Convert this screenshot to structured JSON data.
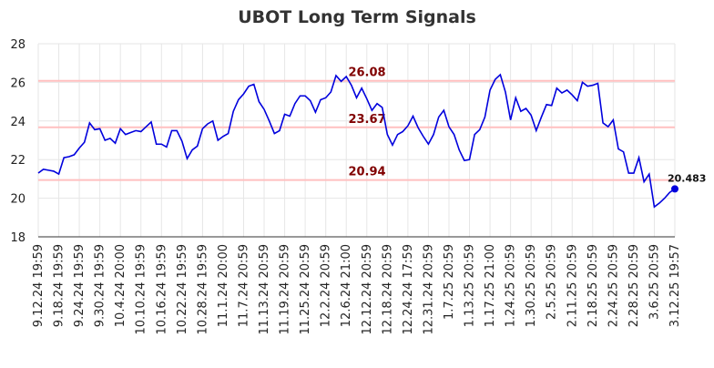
{
  "chart_data": {
    "type": "line",
    "title": "UBOT Long Term Signals",
    "categories": [
      "9.12.24 19:59",
      null,
      null,
      null,
      "9.18.24 19:59",
      null,
      null,
      null,
      "9.24.24 19:59",
      null,
      null,
      null,
      "9.30.24 19:59",
      null,
      null,
      null,
      "10.4.24 20:00",
      null,
      null,
      null,
      "10.10.24 19:59",
      null,
      null,
      null,
      "10.16.24 19:59",
      null,
      null,
      null,
      "10.22.24 19:59",
      null,
      null,
      null,
      "10.28.24 19:59",
      null,
      null,
      null,
      "11.1.24 20:00",
      null,
      null,
      null,
      "11.7.24 20:59",
      null,
      null,
      null,
      "11.13.24 20:59",
      null,
      null,
      null,
      "11.19.24 20:59",
      null,
      null,
      null,
      "11.25.24 20:59",
      null,
      null,
      null,
      "12.2.24 20:59",
      null,
      null,
      null,
      "12.6.24 21:00",
      null,
      null,
      null,
      "12.12.24 20:59",
      null,
      null,
      null,
      "12.18.24 20:59",
      null,
      null,
      null,
      "12.24.24 17:59",
      null,
      null,
      null,
      "12.31.24 20:59",
      null,
      null,
      null,
      "1.7.25 20:59",
      null,
      null,
      null,
      "1.13.25 20:59",
      null,
      null,
      null,
      "1.17.25 21:00",
      null,
      null,
      null,
      "1.24.25 20:59",
      null,
      null,
      null,
      "1.30.25 20:59",
      null,
      null,
      null,
      "2.5.25 20:59",
      null,
      null,
      null,
      "2.11.25 20:59",
      null,
      null,
      null,
      "2.18.25 20:59",
      null,
      null,
      null,
      "2.24.25 20:59",
      null,
      null,
      null,
      "2.28.25 20:59",
      null,
      null,
      null,
      "3.6.25 20:59",
      null,
      null,
      null,
      "3.12.25 19:57"
    ],
    "series": [
      {
        "name": "UBOT",
        "color": "#0000dd",
        "values": [
          21.3,
          21.5,
          21.45,
          21.4,
          21.25,
          22.1,
          22.15,
          22.25,
          22.6,
          22.9,
          23.9,
          23.55,
          23.6,
          23.0,
          23.1,
          22.85,
          23.6,
          23.3,
          23.4,
          23.5,
          23.45,
          23.7,
          23.95,
          22.8,
          22.8,
          22.65,
          23.5,
          23.5,
          22.95,
          22.05,
          22.5,
          22.7,
          23.6,
          23.85,
          24.0,
          23.0,
          23.2,
          23.35,
          24.5,
          25.1,
          25.4,
          25.8,
          25.9,
          25.0,
          24.6,
          24.0,
          23.35,
          23.5,
          24.35,
          24.25,
          24.9,
          25.3,
          25.3,
          25.05,
          24.45,
          25.1,
          25.2,
          25.5,
          26.35,
          26.05,
          26.3,
          25.85,
          25.2,
          25.7,
          25.15,
          24.55,
          24.9,
          24.7,
          23.3,
          22.75,
          23.3,
          23.45,
          23.75,
          24.25,
          23.65,
          23.2,
          22.8,
          23.3,
          24.2,
          24.55,
          23.7,
          23.3,
          22.5,
          21.95,
          22.0,
          23.3,
          23.55,
          24.2,
          25.6,
          26.15,
          26.4,
          25.5,
          24.05,
          25.2,
          24.5,
          24.65,
          24.3,
          23.5,
          24.2,
          24.85,
          24.8,
          25.7,
          25.45,
          25.6,
          25.35,
          25.05,
          26.0,
          25.8,
          25.85,
          25.95,
          23.9,
          23.7,
          24.05,
          22.55,
          22.4,
          21.3,
          21.3,
          22.1,
          20.85,
          21.25,
          19.55,
          19.75,
          20.0,
          20.3,
          20.483
        ]
      }
    ],
    "hlines": [
      {
        "value": 26.08,
        "color": "#ffc0c0",
        "label_color": "#800000"
      },
      {
        "value": 23.67,
        "color": "#ffc0c0",
        "label_color": "#800000"
      },
      {
        "value": 20.94,
        "color": "#ffc0c0",
        "label_color": "#800000"
      }
    ],
    "ylim": [
      18,
      28
    ],
    "yticks": [
      18,
      20,
      22,
      24,
      26,
      28
    ],
    "grid": true
  }
}
